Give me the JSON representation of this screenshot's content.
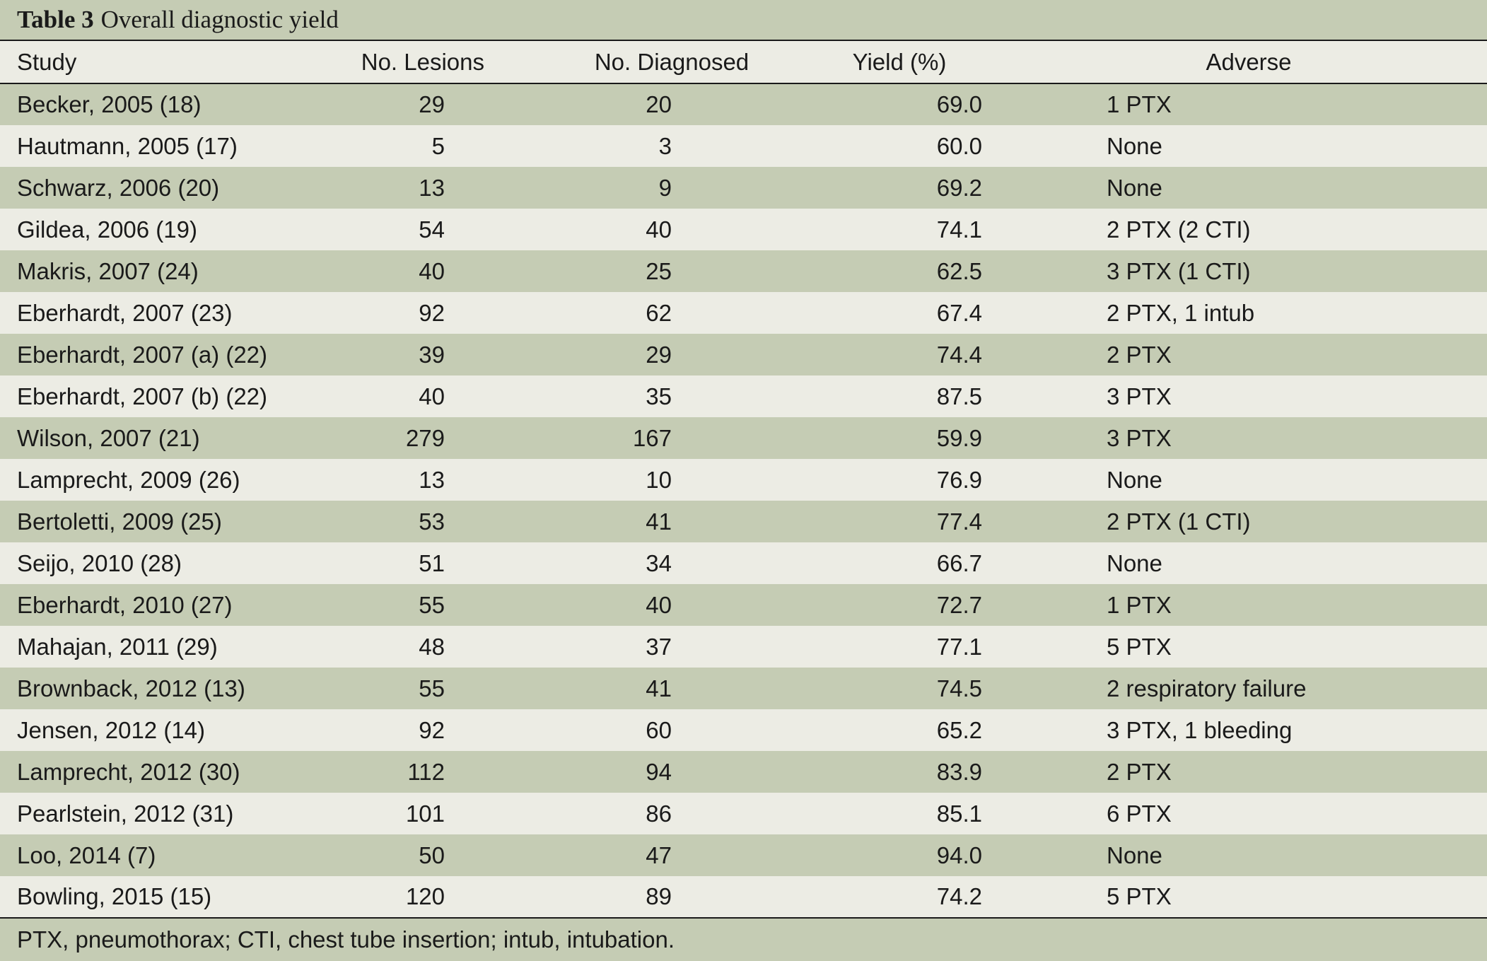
{
  "caption": {
    "label": "Table 3",
    "title": "Overall diagnostic yield"
  },
  "columns": [
    "Study",
    "No. Lesions",
    "No. Diagnosed",
    "Yield (%)",
    "Adverse"
  ],
  "rows": [
    [
      "Becker, 2005 (18)",
      "29",
      "20",
      "69.0",
      "1 PTX"
    ],
    [
      "Hautmann, 2005 (17)",
      "5",
      "3",
      "60.0",
      "None"
    ],
    [
      "Schwarz, 2006 (20)",
      "13",
      "9",
      "69.2",
      "None"
    ],
    [
      "Gildea, 2006 (19)",
      "54",
      "40",
      "74.1",
      "2 PTX (2 CTI)"
    ],
    [
      "Makris, 2007 (24)",
      "40",
      "25",
      "62.5",
      "3 PTX (1 CTI)"
    ],
    [
      "Eberhardt, 2007 (23)",
      "92",
      "62",
      "67.4",
      "2 PTX, 1 intub"
    ],
    [
      "Eberhardt, 2007 (a) (22)",
      "39",
      "29",
      "74.4",
      "2 PTX"
    ],
    [
      "Eberhardt, 2007 (b) (22)",
      "40",
      "35",
      "87.5",
      "3 PTX"
    ],
    [
      "Wilson, 2007 (21)",
      "279",
      "167",
      "59.9",
      "3 PTX"
    ],
    [
      "Lamprecht, 2009 (26)",
      "13",
      "10",
      "76.9",
      "None"
    ],
    [
      "Bertoletti, 2009 (25)",
      "53",
      "41",
      "77.4",
      "2 PTX (1 CTI)"
    ],
    [
      "Seijo, 2010 (28)",
      "51",
      "34",
      "66.7",
      "None"
    ],
    [
      "Eberhardt, 2010 (27)",
      "55",
      "40",
      "72.7",
      "1 PTX"
    ],
    [
      "Mahajan, 2011 (29)",
      "48",
      "37",
      "77.1",
      "5 PTX"
    ],
    [
      "Brownback, 2012 (13)",
      "55",
      "41",
      "74.5",
      "2 respiratory failure"
    ],
    [
      "Jensen, 2012 (14)",
      "92",
      "60",
      "65.2",
      "3 PTX, 1 bleeding"
    ],
    [
      "Lamprecht, 2012 (30)",
      "112",
      "94",
      "83.9",
      "2 PTX"
    ],
    [
      "Pearlstein, 2012 (31)",
      "101",
      "86",
      "85.1",
      "6 PTX"
    ],
    [
      "Loo, 2014 (7)",
      "50",
      "47",
      "94.0",
      "None"
    ],
    [
      "Bowling, 2015 (15)",
      "120",
      "89",
      "74.2",
      "5 PTX"
    ]
  ],
  "footnote": "PTX, pneumothorax; CTI, chest tube insertion; intub, intubation.",
  "colors": {
    "band": "#c5ccb4",
    "light": "#ecece4",
    "rule": "#1a1a1a"
  }
}
